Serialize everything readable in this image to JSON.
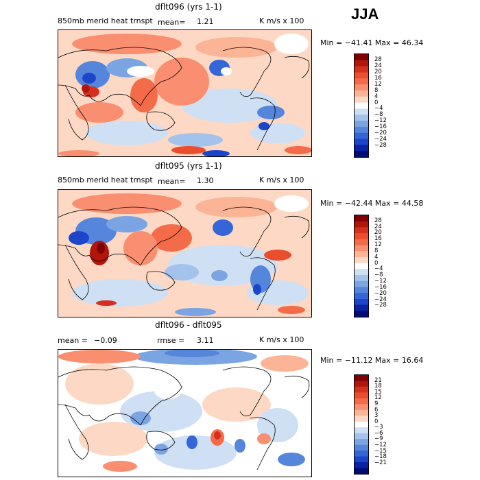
{
  "season": "JJA",
  "chart_data": [
    {
      "type": "heatmap",
      "title": "dflt096 (yrs 1-1)",
      "field_label": "850mb merid heat trnspt",
      "mean_label": "mean=",
      "mean_value": "1.21",
      "units": "K m/s x 100",
      "min_max": "Min = −41.41 Max =  46.34",
      "min": -41.41,
      "max": 46.34,
      "colorbar": {
        "colors": [
          "#7f0000",
          "#b2160b",
          "#d5301f",
          "#ea4e2d",
          "#f36b48",
          "#f98f70",
          "#fcb497",
          "#fdd8c4",
          "#ffffff",
          "#cfe0f4",
          "#a3c3ec",
          "#7ba4e3",
          "#5586dc",
          "#3566d9",
          "#1c45c9",
          "#0a22a6",
          "#000d73"
        ],
        "labels": [
          "28",
          "24",
          "20",
          "16",
          "12",
          "8",
          "4",
          "0",
          "−4",
          "−8",
          "−12",
          "−16",
          "−20",
          "−24",
          "−28"
        ]
      }
    },
    {
      "type": "heatmap",
      "title": "dflt095 (yrs 1-1)",
      "field_label": "850mb merid heat trnspt",
      "mean_label": "mean=",
      "mean_value": "1.30",
      "units": "K m/s x 100",
      "min_max": "Min = −42.44 Max =  44.58",
      "min": -42.44,
      "max": 44.58,
      "colorbar": {
        "colors": [
          "#7f0000",
          "#b2160b",
          "#d5301f",
          "#ea4e2d",
          "#f36b48",
          "#f98f70",
          "#fcb497",
          "#fdd8c4",
          "#ffffff",
          "#cfe0f4",
          "#a3c3ec",
          "#7ba4e3",
          "#5586dc",
          "#3566d9",
          "#1c45c9",
          "#0a22a6",
          "#000d73"
        ],
        "labels": [
          "28",
          "24",
          "20",
          "16",
          "12",
          "8",
          "4",
          "0",
          "−4",
          "−8",
          "−12",
          "−16",
          "−20",
          "−24",
          "−28"
        ]
      }
    },
    {
      "type": "heatmap",
      "title": "dflt096 - dflt095",
      "mean_label": "mean =",
      "mean_value": "−0.09",
      "rmse_label": "rmse =",
      "rmse_value": "3.11",
      "units": "K m/s x 100",
      "min_max": "Min = −11.12 Max =  16.64",
      "min": -11.12,
      "max": 16.64,
      "colorbar": {
        "colors": [
          "#7f0000",
          "#b2160b",
          "#d5301f",
          "#ea4e2d",
          "#f36b48",
          "#f98f70",
          "#fcb497",
          "#fdd8c4",
          "#ffffff",
          "#cfe0f4",
          "#a3c3ec",
          "#7ba4e3",
          "#5586dc",
          "#3566d9",
          "#1c45c9",
          "#0a22a6",
          "#000d73"
        ],
        "labels": [
          "21",
          "18",
          "15",
          "12",
          "9",
          "6",
          "3",
          "0",
          "−3",
          "−6",
          "−9",
          "−12",
          "−15",
          "−18",
          "−21"
        ]
      }
    }
  ]
}
